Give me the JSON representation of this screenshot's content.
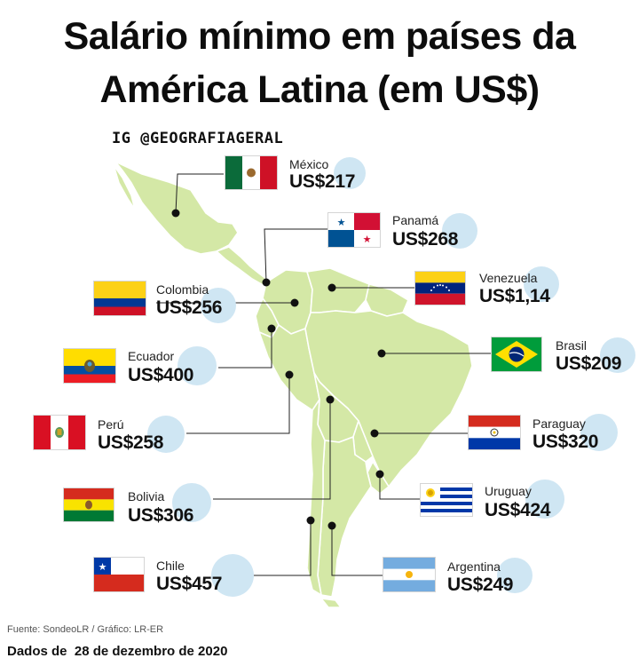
{
  "title_line1": "Salário mínimo em países da",
  "title_line2": "América Latina (em US$)",
  "handle": "IG @GEOGRAFIAGERAL",
  "countries": [
    {
      "name": "México",
      "value": "US$217"
    },
    {
      "name": "Panamá",
      "value": "US$268"
    },
    {
      "name": "Venezuela",
      "value": "US$1,14"
    },
    {
      "name": "Colombia",
      "value": "US$256"
    },
    {
      "name": "Brasil",
      "value": "US$209"
    },
    {
      "name": "Ecuador",
      "value": "US$400"
    },
    {
      "name": "Perú",
      "value": "US$258"
    },
    {
      "name": "Paraguay",
      "value": "US$320"
    },
    {
      "name": "Bolivia",
      "value": "US$306"
    },
    {
      "name": "Uruguay",
      "value": "US$424"
    },
    {
      "name": "Chile",
      "value": "US$457"
    },
    {
      "name": "Argentina",
      "value": "US$249"
    }
  ],
  "source": "Fuente: SondeoLR / Gráfico: LR-ER",
  "date_label": "Dados de  28 de dezembro de 2020",
  "colors": {
    "land": "#d4e8a6",
    "border": "#ffffff",
    "bubble": "#cfe6f3",
    "line": "#222222"
  }
}
